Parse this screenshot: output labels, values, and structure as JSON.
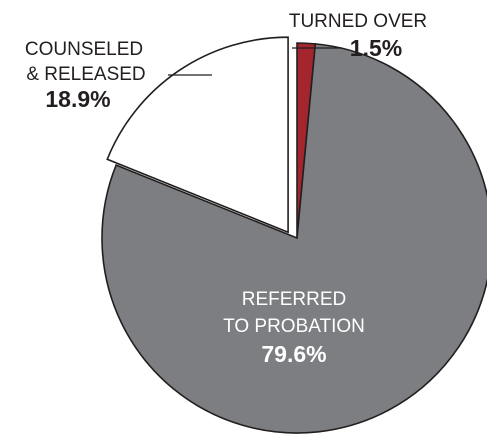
{
  "chart_data": {
    "type": "pie",
    "slices": [
      {
        "label_lines": [
          "TURNED OVER"
        ],
        "value": 1.5,
        "value_label": "1.5%",
        "color": "#a3262f",
        "exploded": false
      },
      {
        "label_lines": [
          "REFERRED",
          "TO PROBATION"
        ],
        "value": 79.6,
        "value_label": "79.6%",
        "color": "#7d7e82",
        "exploded": false
      },
      {
        "label_lines": [
          "COUNSELED",
          "& RELEASED"
        ],
        "value": 18.9,
        "value_label": "18.9%",
        "color": "#ffffff",
        "exploded": true
      }
    ],
    "legend": "none",
    "colors": {
      "stroke": "#231f20",
      "label_on_dark": "#ffffff",
      "label_on_light": "#231f20"
    }
  }
}
